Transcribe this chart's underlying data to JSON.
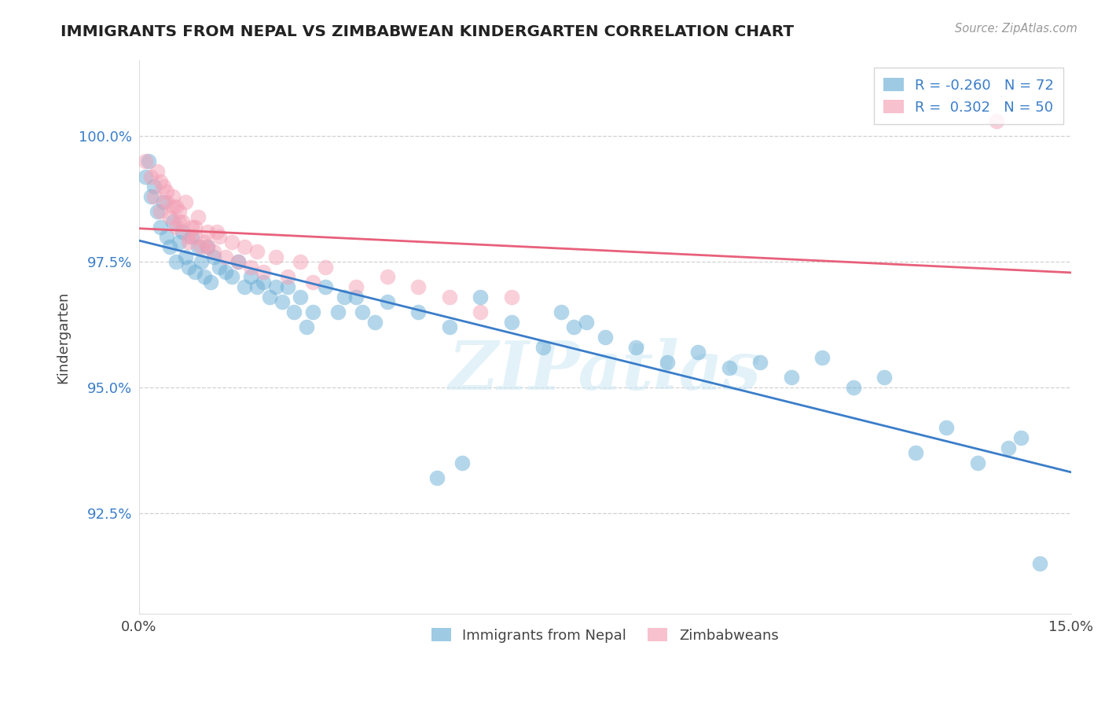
{
  "title": "IMMIGRANTS FROM NEPAL VS ZIMBABWEAN KINDERGARTEN CORRELATION CHART",
  "source": "Source: ZipAtlas.com",
  "ylabel": "Kindergarten",
  "xmin": 0.0,
  "xmax": 15.0,
  "ymin": 90.5,
  "ymax": 101.5,
  "nepal_R": -0.26,
  "nepal_N": 72,
  "zimb_R": 0.302,
  "zimb_N": 50,
  "nepal_color": "#6baed6",
  "zimb_color": "#f4a0b5",
  "nepal_line_color": "#3a7dc9",
  "zimb_line_color": "#e8607a",
  "background_color": "#ffffff",
  "nepal_x": [
    0.1,
    0.15,
    0.2,
    0.25,
    0.3,
    0.35,
    0.4,
    0.45,
    0.5,
    0.55,
    0.6,
    0.65,
    0.7,
    0.75,
    0.8,
    0.85,
    0.9,
    0.95,
    1.0,
    1.05,
    1.1,
    1.15,
    1.2,
    1.3,
    1.4,
    1.5,
    1.6,
    1.7,
    1.8,
    1.9,
    2.0,
    2.1,
    2.2,
    2.3,
    2.4,
    2.6,
    2.8,
    3.0,
    3.2,
    3.5,
    3.8,
    4.0,
    4.5,
    5.0,
    5.5,
    6.0,
    6.5,
    7.0,
    7.5,
    8.0,
    8.5,
    9.0,
    9.5,
    10.0,
    10.5,
    11.0,
    11.5,
    12.0,
    12.5,
    13.0,
    13.5,
    14.0,
    14.2,
    14.5,
    6.8,
    7.2,
    5.2,
    4.8,
    3.3,
    2.5,
    2.7,
    3.6
  ],
  "nepal_y": [
    99.2,
    99.5,
    98.8,
    99.0,
    98.5,
    98.2,
    98.7,
    98.0,
    97.8,
    98.3,
    97.5,
    97.9,
    98.1,
    97.6,
    97.4,
    98.0,
    97.3,
    97.8,
    97.5,
    97.2,
    97.8,
    97.1,
    97.6,
    97.4,
    97.3,
    97.2,
    97.5,
    97.0,
    97.2,
    97.0,
    97.1,
    96.8,
    97.0,
    96.7,
    97.0,
    96.8,
    96.5,
    97.0,
    96.5,
    96.8,
    96.3,
    96.7,
    96.5,
    96.2,
    96.8,
    96.3,
    95.8,
    96.2,
    96.0,
    95.8,
    95.5,
    95.7,
    95.4,
    95.5,
    95.2,
    95.6,
    95.0,
    95.2,
    93.7,
    94.2,
    93.5,
    93.8,
    94.0,
    91.5,
    96.5,
    96.3,
    93.5,
    93.2,
    96.8,
    96.5,
    96.2,
    96.5
  ],
  "zimb_x": [
    0.1,
    0.2,
    0.25,
    0.3,
    0.35,
    0.4,
    0.45,
    0.5,
    0.55,
    0.6,
    0.65,
    0.7,
    0.75,
    0.8,
    0.85,
    0.9,
    0.95,
    1.0,
    1.1,
    1.2,
    1.3,
    1.4,
    1.5,
    1.6,
    1.7,
    1.8,
    1.9,
    2.0,
    2.2,
    2.4,
    2.6,
    2.8,
    3.0,
    3.5,
    4.0,
    4.5,
    5.0,
    5.5,
    6.0,
    1.05,
    0.55,
    0.65,
    0.8,
    1.1,
    1.25,
    0.45,
    0.35,
    0.6,
    0.9,
    13.8
  ],
  "zimb_y": [
    99.5,
    99.2,
    98.8,
    99.3,
    98.5,
    99.0,
    98.7,
    98.4,
    98.8,
    98.2,
    98.5,
    98.3,
    98.7,
    97.9,
    98.2,
    98.0,
    98.4,
    97.8,
    98.1,
    97.7,
    98.0,
    97.6,
    97.9,
    97.5,
    97.8,
    97.4,
    97.7,
    97.3,
    97.6,
    97.2,
    97.5,
    97.1,
    97.4,
    97.0,
    97.2,
    97.0,
    96.8,
    96.5,
    96.8,
    97.9,
    98.6,
    98.3,
    98.0,
    97.8,
    98.1,
    98.9,
    99.1,
    98.6,
    98.2,
    100.3
  ]
}
